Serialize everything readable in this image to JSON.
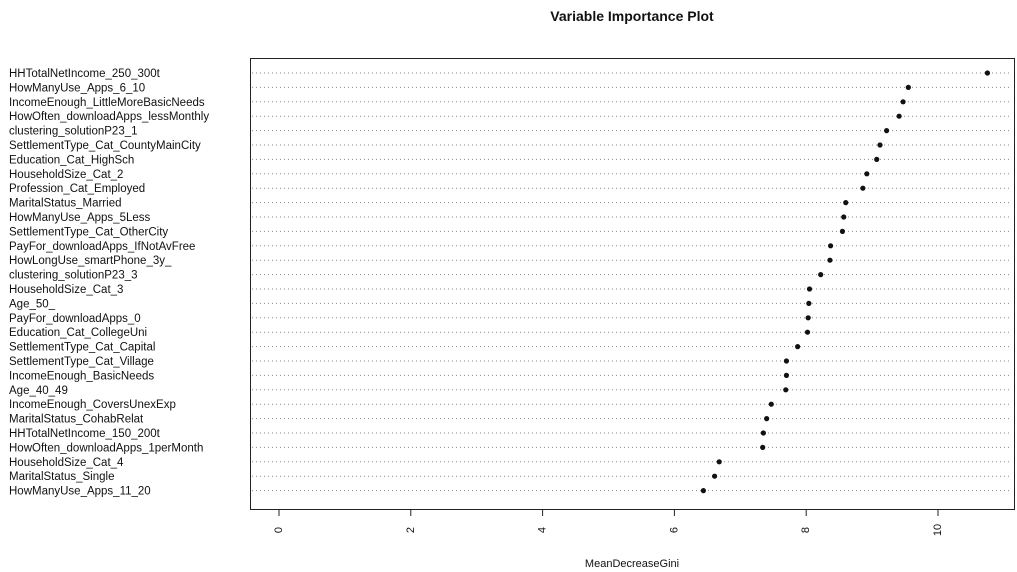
{
  "chart_data": {
    "type": "scatter",
    "subtype": "dotchart",
    "title": "Variable Importance Plot",
    "xlabel": "MeanDecreaseGini",
    "ylabel": "",
    "xlim": [
      0,
      11.2
    ],
    "xticks": [
      0,
      2,
      4,
      6,
      8,
      10
    ],
    "xtick_labels": [
      "0",
      "2",
      "4",
      "6",
      "8",
      "10"
    ],
    "xtick_rotation": "vertical",
    "grid": "dotted row guides",
    "legend": "none",
    "point_color": "#111111",
    "categories": [
      "HHTotalNetIncome_250_300t",
      "HowManyUse_Apps_6_10",
      "IncomeEnough_LittleMoreBasicNeeds",
      "HowOften_downloadApps_lessMonthly",
      "clustering_solutionP23_1",
      "SettlementType_Cat_CountyMainCity",
      "Education_Cat_HighSch",
      "HouseholdSize_Cat_2",
      "Profession_Cat_Employed",
      "MaritalStatus_Married",
      "HowManyUse_Apps_5Less",
      "SettlementType_Cat_OtherCity",
      "PayFor_downloadApps_IfNotAvFree",
      "HowLongUse_smartPhone_3y_",
      "clustering_solutionP23_3",
      "HouseholdSize_Cat_3",
      "Age_50_",
      "PayFor_downloadApps_0",
      "Education_Cat_CollegeUni",
      "SettlementType_Cat_Capital",
      "SettlementType_Cat_Village",
      "IncomeEnough_BasicNeeds",
      "Age_40_49",
      "IncomeEnough_CoversUnexExp",
      "MaritalStatus_CohabRelat",
      "HHTotalNetIncome_150_200t",
      "HowOften_downloadApps_1perMonth",
      "HouseholdSize_Cat_4",
      "MaritalStatus_Single",
      "HowManyUse_Apps_11_20"
    ],
    "values": [
      10.75,
      9.55,
      9.47,
      9.41,
      9.22,
      9.12,
      9.07,
      8.92,
      8.86,
      8.6,
      8.57,
      8.55,
      8.37,
      8.36,
      8.22,
      8.05,
      8.04,
      8.03,
      8.02,
      7.87,
      7.7,
      7.7,
      7.69,
      7.47,
      7.4,
      7.35,
      7.34,
      6.68,
      6.61,
      6.44
    ]
  }
}
